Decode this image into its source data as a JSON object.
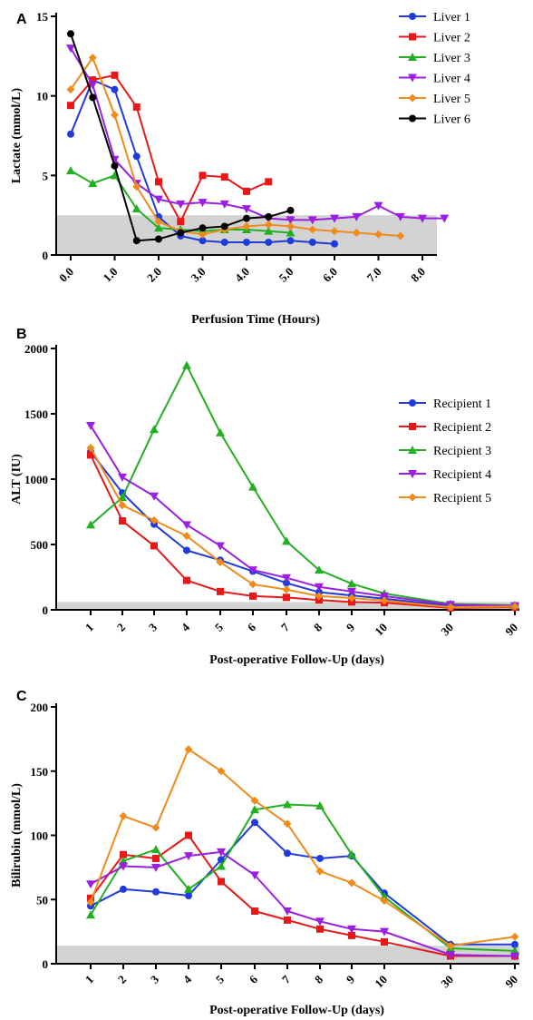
{
  "colors": {
    "blue": "#1f3bdc",
    "red": "#e81818",
    "green": "#22b022",
    "purple": "#9b1fe0",
    "orange": "#f08a1a",
    "black": "#000000",
    "band": "#d3d3d3"
  },
  "chart_data": [
    {
      "panel": "A",
      "type": "line",
      "xlabel": "Perfusion Time (Hours)",
      "ylabel": "Lactate (mmol/L)",
      "xlim": [
        0,
        8.7
      ],
      "ylim": [
        0,
        15
      ],
      "yticks": [
        0,
        5,
        10,
        15
      ],
      "xticks": [
        0,
        1,
        2,
        3,
        4,
        5,
        6,
        7,
        8
      ],
      "xtick_labels": [
        "0.0",
        "1.0",
        "2.0",
        "3.0",
        "4.0",
        "5.0",
        "6.0",
        "7.0",
        "8.0"
      ],
      "normal_band": [
        0,
        2.5
      ],
      "legend_position": "top-right",
      "series": [
        {
          "name": "Liver 1",
          "color": "blue",
          "marker": "circle",
          "x": [
            0,
            0.5,
            1,
            1.5,
            2,
            2.5,
            3,
            3.5,
            4,
            4.5,
            5,
            5.5,
            6
          ],
          "y": [
            7.6,
            11.0,
            10.4,
            6.2,
            2.4,
            1.2,
            0.9,
            0.8,
            0.8,
            0.8,
            0.9,
            0.8,
            0.7
          ]
        },
        {
          "name": "Liver 2",
          "color": "red",
          "marker": "square",
          "x": [
            0,
            0.5,
            1,
            1.5,
            2,
            2.5,
            3,
            3.5,
            4,
            4.5
          ],
          "y": [
            9.4,
            11.0,
            11.3,
            9.3,
            4.6,
            2.1,
            5.0,
            4.9,
            4.0,
            4.6
          ]
        },
        {
          "name": "Liver 3",
          "color": "green",
          "marker": "triangle-up",
          "x": [
            0,
            0.5,
            1,
            1.5,
            2,
            2.5,
            3,
            3.5,
            4,
            4.5,
            5
          ],
          "y": [
            5.3,
            4.5,
            5.0,
            2.9,
            1.7,
            1.6,
            1.5,
            1.6,
            1.6,
            1.5,
            1.4
          ]
        },
        {
          "name": "Liver 4",
          "color": "purple",
          "marker": "triangle-down",
          "x": [
            0,
            0.5,
            1,
            1.5,
            2,
            2.5,
            3,
            3.5,
            4,
            4.5,
            5,
            5.5,
            6,
            6.5,
            7,
            7.5,
            8,
            8.5
          ],
          "y": [
            13.0,
            10.7,
            6.0,
            4.5,
            3.5,
            3.2,
            3.3,
            3.2,
            2.9,
            2.3,
            2.2,
            2.2,
            2.3,
            2.4,
            3.1,
            2.4,
            2.3,
            2.3
          ]
        },
        {
          "name": "Liver 5",
          "color": "orange",
          "marker": "diamond",
          "x": [
            0,
            0.5,
            1,
            1.5,
            2,
            2.5,
            3,
            3.5,
            4,
            4.5,
            5,
            5.5,
            6,
            6.5,
            7,
            7.5
          ],
          "y": [
            10.4,
            12.4,
            8.8,
            4.3,
            2.1,
            1.5,
            1.3,
            1.6,
            1.8,
            1.9,
            1.8,
            1.6,
            1.5,
            1.4,
            1.3,
            1.2
          ]
        },
        {
          "name": "Liver 6",
          "color": "black",
          "marker": "circle",
          "x": [
            0,
            0.5,
            1,
            1.5,
            2,
            2.5,
            3,
            3.5,
            4,
            4.5,
            5
          ],
          "y": [
            13.9,
            9.9,
            5.6,
            0.9,
            1.0,
            1.4,
            1.7,
            1.8,
            2.3,
            2.4,
            2.8
          ]
        }
      ]
    },
    {
      "panel": "B",
      "type": "line",
      "xlabel": "Post-operative Follow-Up (days)",
      "ylabel": "ALT  (IU)",
      "categories": [
        "1",
        "2",
        "3",
        "4",
        "5",
        "6",
        "7",
        "8",
        "9",
        "10",
        "30",
        "90"
      ],
      "ylim": [
        0,
        2000
      ],
      "yticks": [
        0,
        500,
        1000,
        1500,
        2000
      ],
      "normal_band": [
        0,
        60
      ],
      "legend_position": "right",
      "series": [
        {
          "name": "Recipient 1",
          "color": "blue",
          "marker": "circle",
          "values": [
            1210,
            895,
            655,
            455,
            380,
            295,
            205,
            135,
            110,
            85,
            30,
            25
          ]
        },
        {
          "name": "Recipient 2",
          "color": "red",
          "marker": "square",
          "values": [
            1185,
            680,
            490,
            225,
            140,
            105,
            95,
            75,
            60,
            55,
            15,
            20
          ]
        },
        {
          "name": "Recipient 3",
          "color": "green",
          "marker": "triangle-up",
          "values": [
            650,
            860,
            1380,
            1870,
            1355,
            940,
            525,
            305,
            200,
            125,
            45,
            35
          ]
        },
        {
          "name": "Recipient 4",
          "color": "purple",
          "marker": "triangle-down",
          "values": [
            1410,
            1015,
            870,
            650,
            490,
            305,
            245,
            175,
            140,
            105,
            40,
            30
          ]
        },
        {
          "name": "Recipient 5",
          "color": "orange",
          "marker": "diamond",
          "values": [
            1240,
            800,
            685,
            565,
            365,
            195,
            155,
            105,
            90,
            70,
            20,
            25
          ]
        }
      ]
    },
    {
      "panel": "C",
      "type": "line",
      "xlabel": "Post-operative Follow-Up (days)",
      "ylabel": "Bilirubin (mmol/L)",
      "categories": [
        "1",
        "2",
        "3",
        "4",
        "5",
        "6",
        "7",
        "8",
        "9",
        "10",
        "30",
        "90"
      ],
      "ylim": [
        0,
        200
      ],
      "yticks": [
        0,
        50,
        100,
        150,
        200
      ],
      "normal_band": [
        0,
        14
      ],
      "series": [
        {
          "color": "blue",
          "marker": "circle",
          "values": [
            45,
            58,
            56,
            53,
            81,
            110,
            86,
            82,
            84,
            55,
            15,
            15
          ]
        },
        {
          "color": "red",
          "marker": "square",
          "values": [
            51,
            85,
            82,
            100,
            64,
            41,
            34,
            27,
            22,
            17,
            6,
            6
          ]
        },
        {
          "color": "green",
          "marker": "triangle-up",
          "values": [
            38,
            80,
            89,
            58,
            76,
            120,
            124,
            123,
            85,
            52,
            12,
            10
          ]
        },
        {
          "color": "purple",
          "marker": "triangle-down",
          "values": [
            62,
            76,
            75,
            84,
            87,
            69,
            41,
            33,
            27,
            25,
            7,
            6
          ]
        },
        {
          "color": "orange",
          "marker": "diamond",
          "values": [
            48,
            115,
            106,
            167,
            150,
            127,
            109,
            72,
            63,
            49,
            14,
            21
          ]
        }
      ]
    }
  ]
}
